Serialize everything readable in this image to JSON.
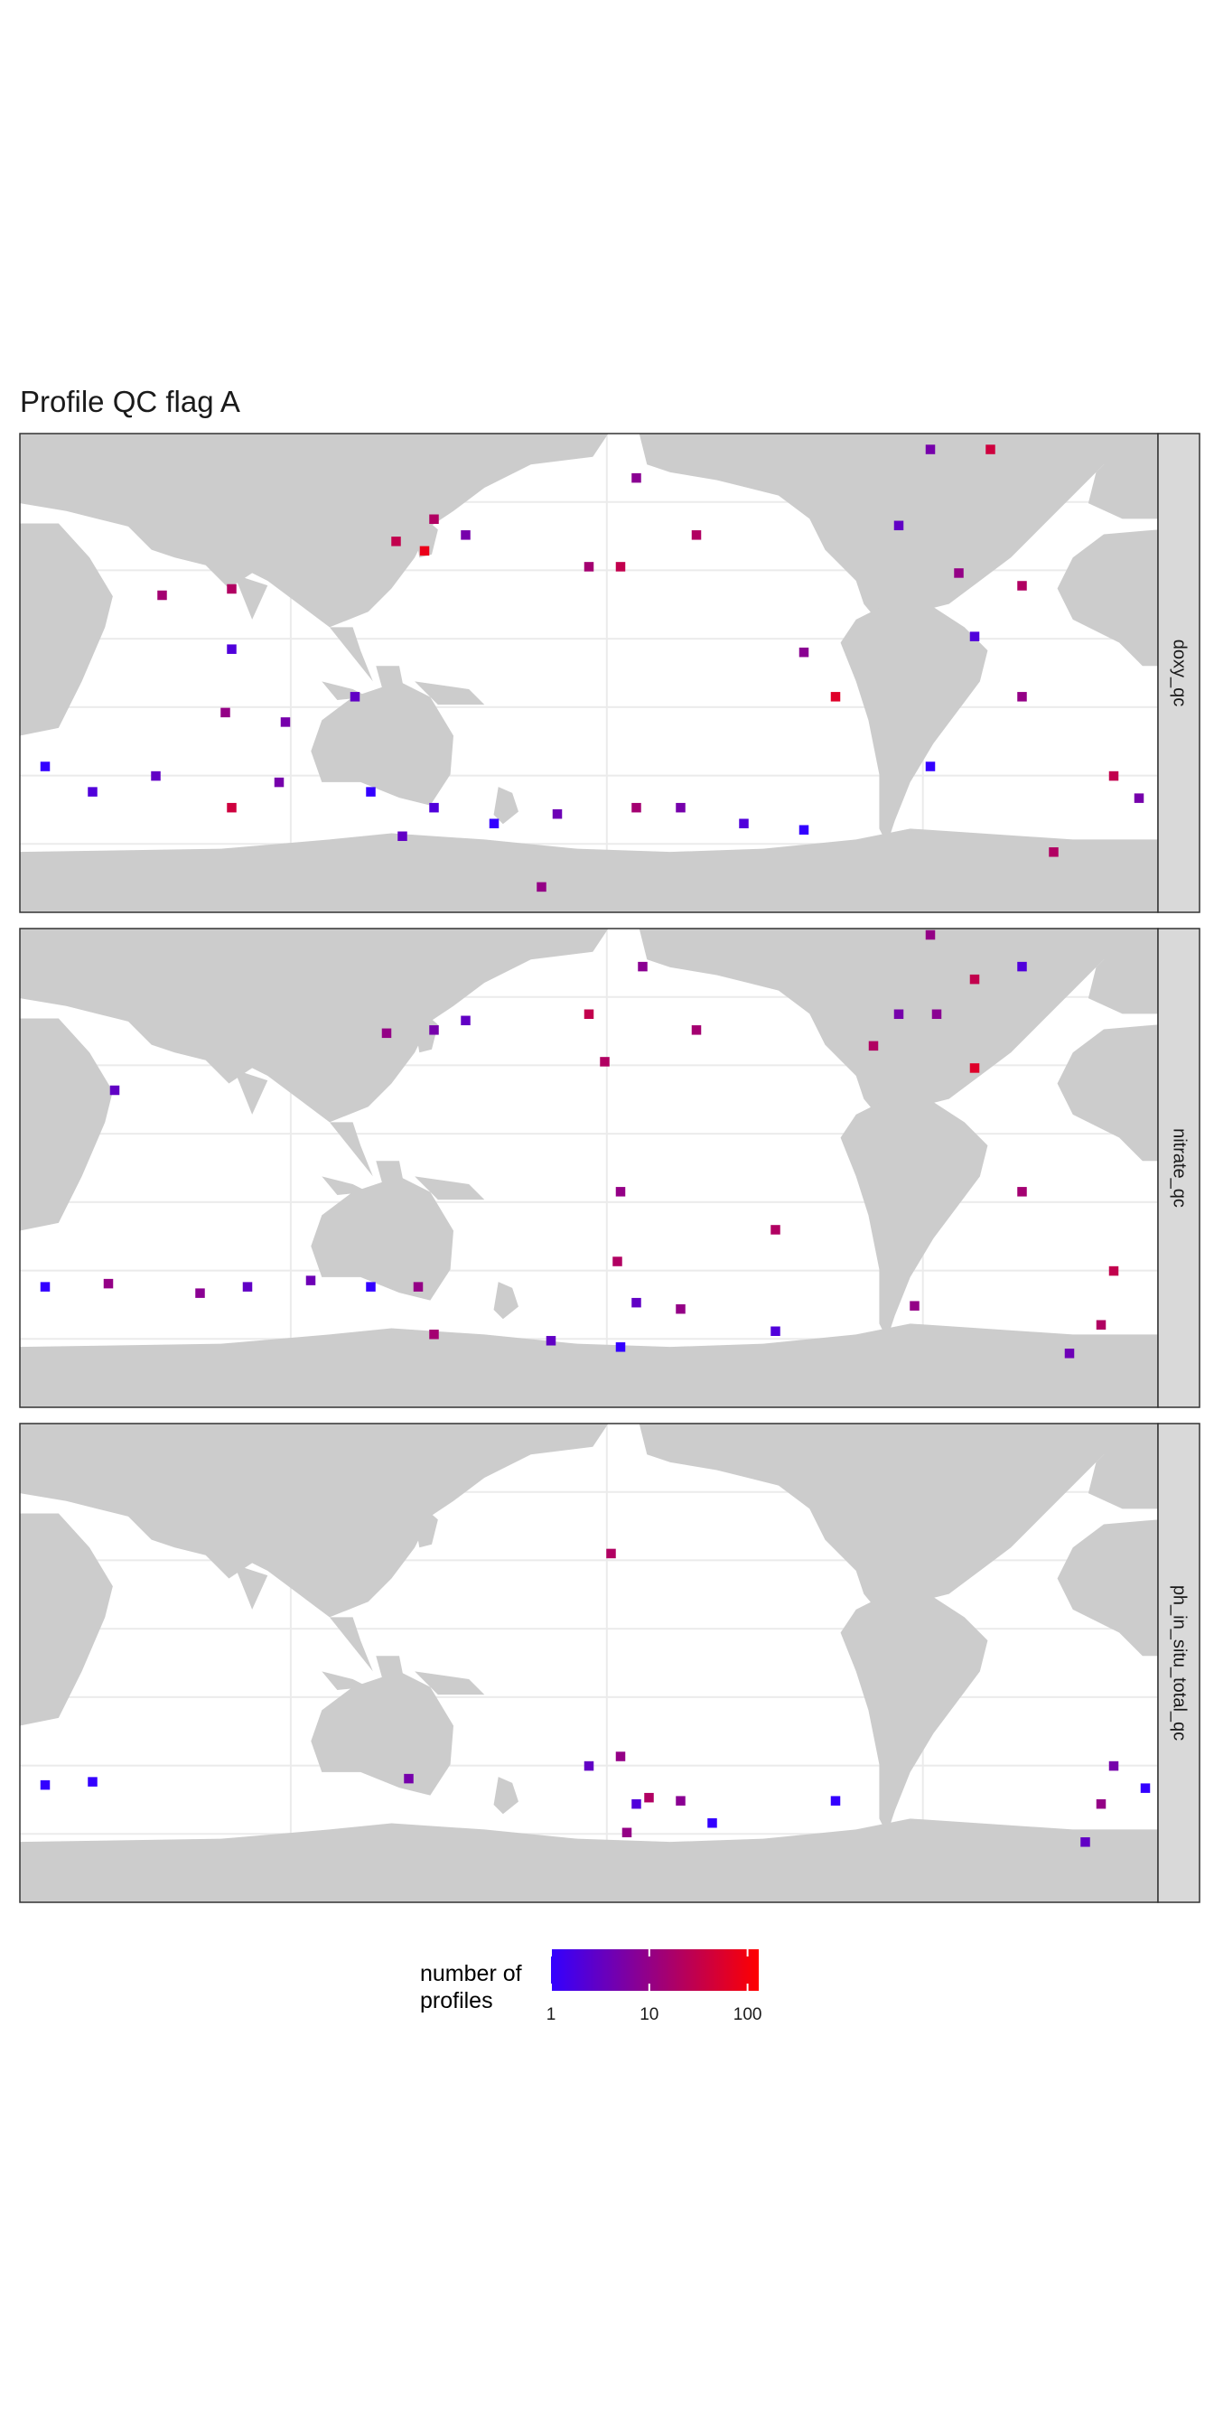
{
  "chart_data": {
    "type": "heatmap",
    "title": "Profile QC flag A",
    "xlim": [
      20,
      380
    ],
    "ylim": [
      -78,
      73
    ],
    "grid": true,
    "color_low": "#3300ff",
    "color_high": "#ff0000",
    "log_scale": true,
    "colorbar_title": "number of\nprofiles",
    "clim": [
      1,
      130
    ],
    "cticks": [
      1,
      10,
      100
    ],
    "series": [
      {
        "name": "doxy_qc",
        "lon": [
          139,
          151,
          161,
          148,
          200,
          210,
          215,
          234,
          308,
          327,
          298,
          317,
          337,
          322,
          278,
          268,
          65,
          87,
          87,
          85,
          104,
          28,
          43,
          63,
          87,
          102,
          131,
          151,
          141,
          170,
          190,
          215,
          229,
          249,
          268,
          185,
          126,
          347,
          366,
          374,
          308,
          337
        ],
        "lat": [
          39,
          46,
          41,
          36,
          31,
          31,
          59,
          41,
          68,
          68,
          44,
          29,
          25,
          9,
          -10,
          4,
          22,
          24,
          5,
          -15,
          -18,
          -32,
          -40,
          -35,
          -45,
          -37,
          -40,
          -45,
          -54,
          -50,
          -47,
          -45,
          -45,
          -50,
          -52,
          -70,
          -10,
          -59,
          -35,
          -42,
          -32,
          -10
        ],
        "values": [
          30,
          20,
          5,
          80,
          15,
          30,
          8,
          20,
          5,
          40,
          3,
          10,
          20,
          2,
          60,
          8,
          15,
          20,
          2,
          10,
          5,
          1,
          2,
          3,
          40,
          5,
          1,
          2,
          3,
          1,
          4,
          15,
          5,
          2,
          1,
          10,
          3,
          20,
          30,
          5,
          1,
          10
        ]
      },
      {
        "name": "nitrate_qc",
        "lon": [
          151,
          161,
          136,
          217,
          205,
          234,
          200,
          308,
          322,
          298,
          310,
          290,
          322,
          337,
          50,
          210,
          259,
          337,
          28,
          48,
          77,
          92,
          112,
          131,
          146,
          151,
          209,
          215,
          229,
          259,
          210,
          188,
          366,
          362,
          352,
          303
        ],
        "lat": [
          41,
          44,
          40,
          61,
          31,
          41,
          46,
          71,
          57,
          46,
          46,
          36,
          29,
          61,
          22,
          -10,
          -22,
          -10,
          -40,
          -39,
          -42,
          -40,
          -38,
          -40,
          -40,
          -55,
          -32,
          -45,
          -47,
          -54,
          -59,
          -57,
          -35,
          -52,
          -61,
          -46
        ],
        "values": [
          5,
          3,
          10,
          8,
          20,
          15,
          30,
          10,
          30,
          5,
          8,
          20,
          60,
          2,
          3,
          10,
          20,
          15,
          1,
          10,
          8,
          3,
          4,
          1,
          10,
          15,
          20,
          3,
          10,
          2,
          1,
          3,
          30,
          20,
          4,
          10
        ]
      },
      {
        "name": "ph_in_situ_total_qc",
        "lon": [
          207,
          28,
          43,
          143,
          200,
          210,
          219,
          229,
          215,
          239,
          212,
          366,
          376,
          362,
          357,
          278
        ],
        "lat": [
          32,
          -41,
          -40,
          -39,
          -35,
          -32,
          -45,
          -46,
          -47,
          -53,
          -56,
          -35,
          -42,
          -47,
          -59,
          -46
        ],
        "values": [
          20,
          1,
          1,
          5,
          3,
          10,
          20,
          8,
          2,
          1,
          10,
          5,
          1,
          10,
          3,
          1
        ]
      }
    ]
  }
}
